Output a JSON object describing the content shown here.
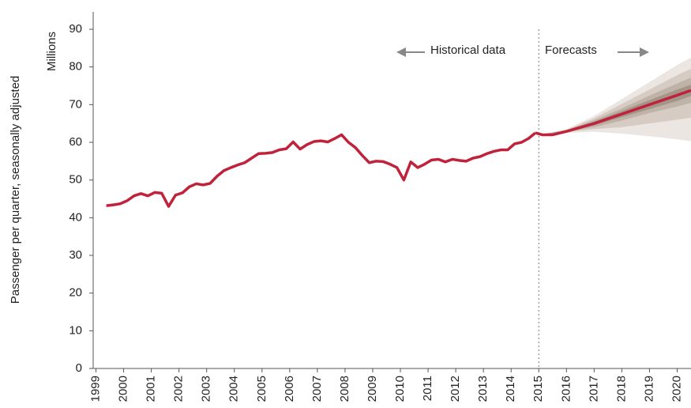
{
  "chart_data": {
    "type": "line",
    "y_axis_label": "Passenger per quarter, seasonally adjusted",
    "y_unit_label": "Millions",
    "annotations": [
      "Historical data",
      "Forecasts"
    ],
    "forecast_start": 2015,
    "color": "#c0223b",
    "x": [
      1999.375,
      1999.625,
      1999.875,
      2000.125,
      2000.375,
      2000.625,
      2000.875,
      2001.125,
      2001.375,
      2001.625,
      2001.875,
      2002.125,
      2002.375,
      2002.625,
      2002.875,
      2003.125,
      2003.375,
      2003.625,
      2003.875,
      2004.125,
      2004.375,
      2004.625,
      2004.875,
      2005.125,
      2005.375,
      2005.625,
      2005.875,
      2006.125,
      2006.375,
      2006.625,
      2006.875,
      2007.125,
      2007.375,
      2007.625,
      2007.875,
      2008.125,
      2008.375,
      2008.625,
      2008.875,
      2009.125,
      2009.375,
      2009.625,
      2009.875,
      2010.125,
      2010.375,
      2010.625,
      2010.875,
      2011.125,
      2011.375,
      2011.625,
      2011.875,
      2012.125,
      2012.375,
      2012.625,
      2012.875,
      2013.125,
      2013.375,
      2013.625,
      2013.875,
      2014.125,
      2014.375,
      2014.625,
      2014.875
    ],
    "values": [
      43.2,
      43.4,
      43.7,
      44.5,
      45.8,
      46.4,
      45.8,
      46.7,
      46.5,
      43.0,
      46.0,
      46.6,
      48.2,
      49.0,
      48.7,
      49.1,
      51.0,
      52.5,
      53.3,
      54.0,
      54.6,
      55.8,
      57.0,
      57.1,
      57.3,
      58.0,
      58.3,
      60.1,
      58.2,
      59.4,
      60.2,
      60.4,
      60.1,
      61.0,
      62.0,
      60.0,
      58.6,
      56.5,
      54.6,
      55.0,
      54.9,
      54.2,
      53.3,
      50.0,
      54.8,
      53.3,
      54.2,
      55.3,
      55.5,
      54.8,
      55.5,
      55.2,
      55.0,
      55.8,
      56.2,
      57.0,
      57.6,
      58.0,
      58.0,
      59.6,
      60.0,
      61.0,
      62.5
    ],
    "forecast": {
      "x": [
        2014.875,
        2015.125,
        2015.5,
        2016,
        2017,
        2018,
        2019,
        2020,
        2020.5
      ],
      "values": [
        62.5,
        62.0,
        62.0,
        62.9,
        65.0,
        67.5,
        70.0,
        72.5,
        73.8
      ]
    },
    "fan": {
      "x": [
        2015,
        2016,
        2017,
        2018,
        2019,
        2020,
        2020.5
      ],
      "bands": [
        {
          "color": "#ebe6e2",
          "upper": [
            62,
            63.5,
            67.0,
            71.5,
            76.0,
            80.5,
            82.5
          ],
          "lower": [
            62,
            62.5,
            62.8,
            62.3,
            61.6,
            60.8,
            60.3
          ]
        },
        {
          "color": "#d6ccc4",
          "upper": [
            62,
            63.3,
            66.4,
            70.2,
            74.0,
            77.8,
            79.5
          ],
          "lower": [
            62,
            62.7,
            63.5,
            64.0,
            65.0,
            66.0,
            66.5
          ]
        },
        {
          "color": "#bfb2a7",
          "upper": [
            62,
            63.2,
            65.9,
            69.0,
            72.4,
            75.6,
            77.2
          ],
          "lower": [
            62,
            62.8,
            64.0,
            65.8,
            67.8,
            69.5,
            70.5
          ]
        },
        {
          "color": "#a4958a",
          "upper": [
            62,
            63.1,
            65.5,
            68.3,
            71.2,
            74.0,
            75.3
          ],
          "lower": [
            62,
            62.9,
            64.5,
            66.7,
            68.8,
            71.0,
            72.3
          ]
        }
      ]
    },
    "xlim": [
      1998.9,
      2020.5
    ],
    "xticks": [
      1999,
      2000,
      2001,
      2002,
      2003,
      2004,
      2005,
      2006,
      2007,
      2008,
      2009,
      2010,
      2011,
      2012,
      2013,
      2014,
      2015,
      2016,
      2017,
      2018,
      2019,
      2020
    ],
    "ylim": [
      0,
      90
    ],
    "yticks": [
      0,
      10,
      20,
      30,
      40,
      50,
      60,
      70,
      80,
      90
    ],
    "grid": false
  }
}
